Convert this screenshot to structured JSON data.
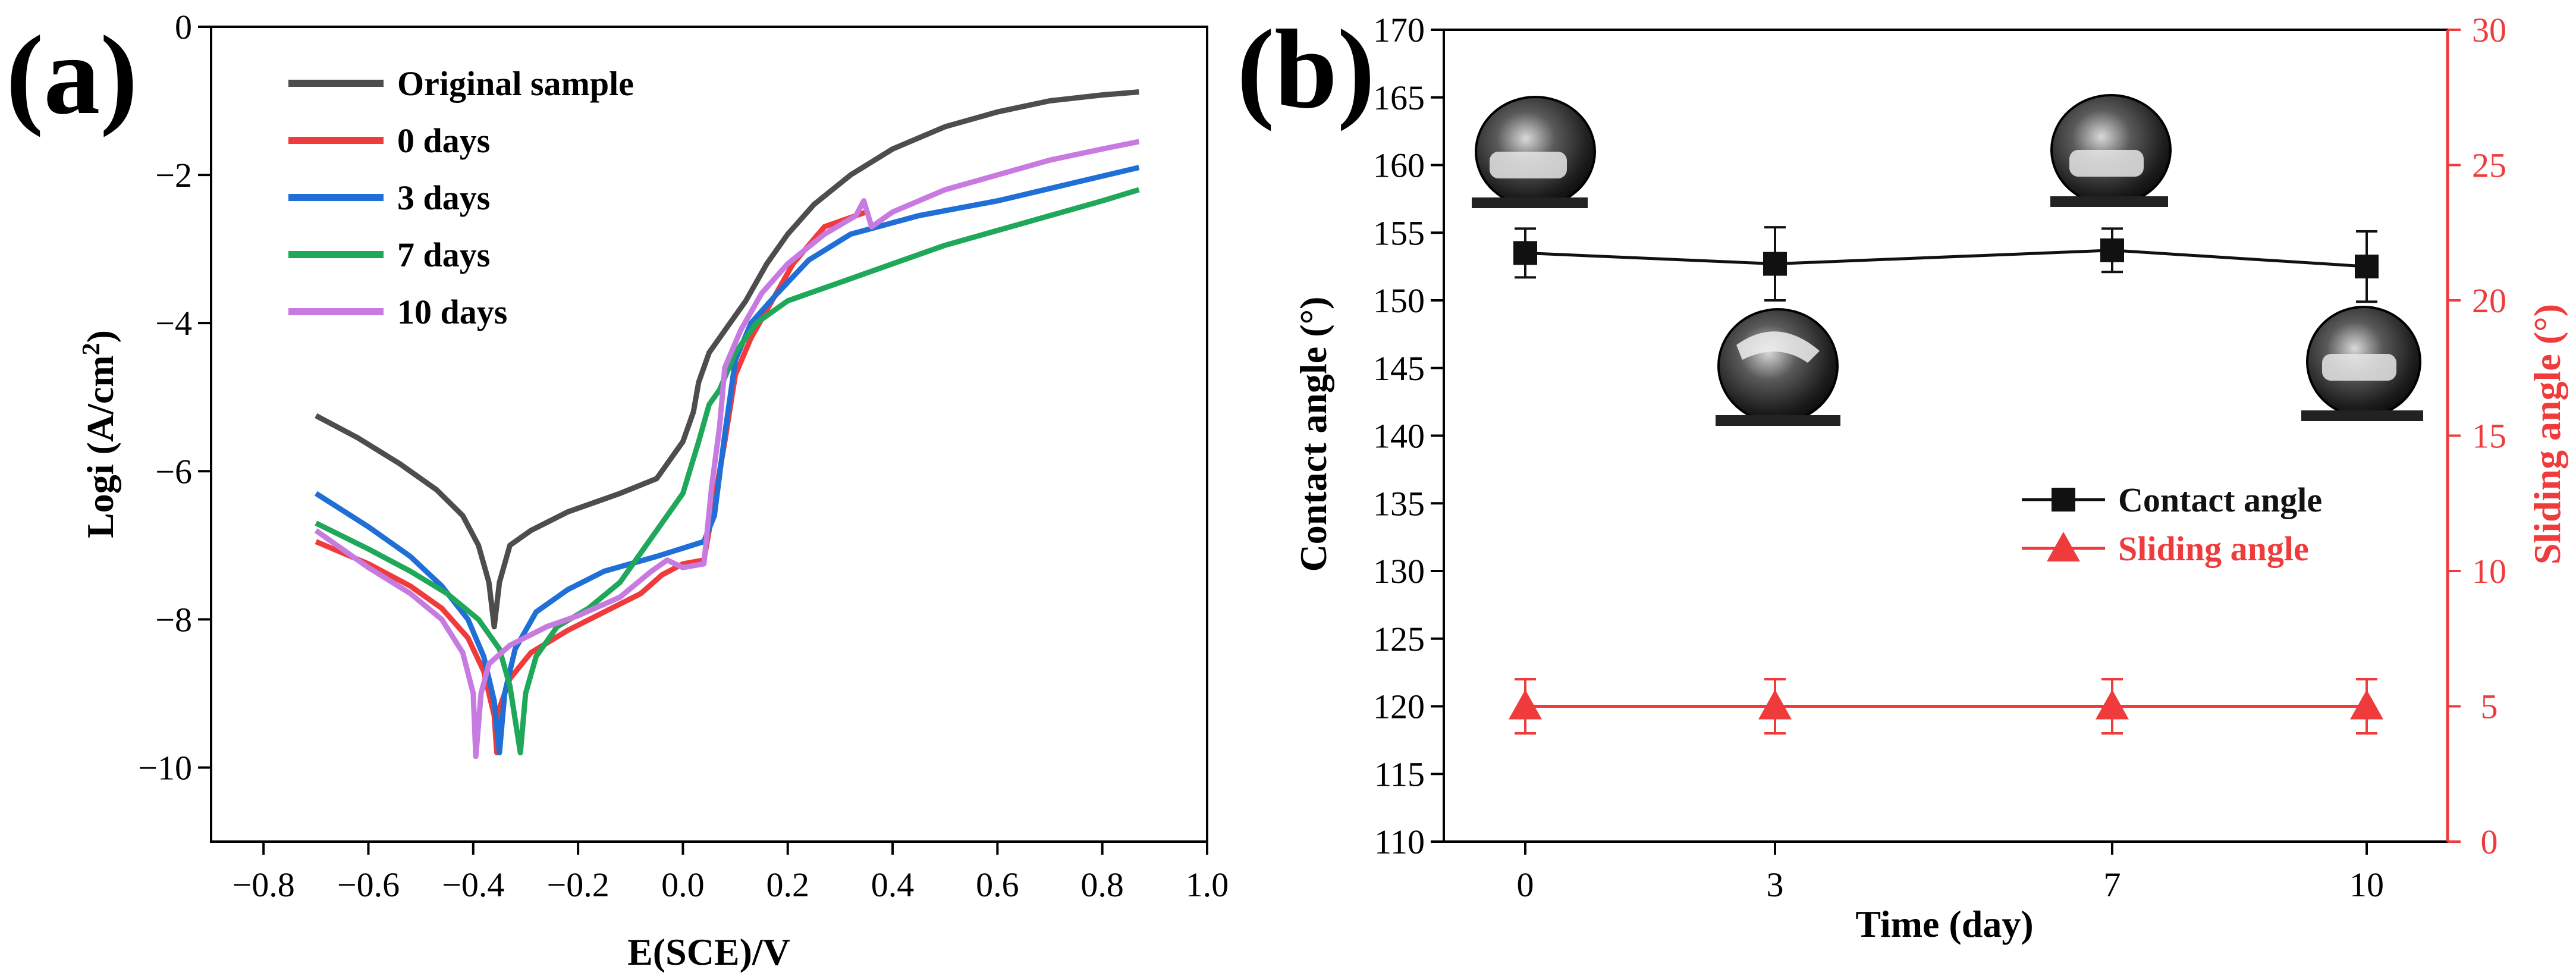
{
  "chart_data": [
    {
      "panel_label": "(a)",
      "type": "line",
      "title": "",
      "xlabel": "E(SCE)/V",
      "ylabel_main": "Logi (A/cm",
      "ylabel_sup": "2",
      "ylabel_close": ")",
      "xlim": [
        -0.9,
        1.0
      ],
      "ylim": [
        -11,
        0
      ],
      "xticks": [
        -0.8,
        -0.6,
        -0.4,
        -0.2,
        0.0,
        0.2,
        0.4,
        0.6,
        0.8,
        1.0
      ],
      "xtick_labels": [
        "−0.8",
        "−0.6",
        "−0.4",
        "−0.2",
        "0.0",
        "0.2",
        "0.4",
        "0.6",
        "0.8",
        "1.0"
      ],
      "yticks": [
        0,
        -2,
        -4,
        -6,
        -8,
        -10
      ],
      "ytick_labels": [
        "0",
        "−2",
        "−4",
        "−6",
        "−8",
        "−10"
      ],
      "legend_position": "top-left",
      "series": [
        {
          "name": "Original sample",
          "color": "#4d4d4d",
          "points": [
            [
              -0.7,
              -5.25
            ],
            [
              -0.62,
              -5.55
            ],
            [
              -0.54,
              -5.9
            ],
            [
              -0.47,
              -6.25
            ],
            [
              -0.42,
              -6.6
            ],
            [
              -0.39,
              -7.0
            ],
            [
              -0.37,
              -7.5
            ],
            [
              -0.36,
              -8.1
            ],
            [
              -0.35,
              -7.5
            ],
            [
              -0.33,
              -7.0
            ],
            [
              -0.29,
              -6.8
            ],
            [
              -0.22,
              -6.55
            ],
            [
              -0.12,
              -6.3
            ],
            [
              -0.05,
              -6.1
            ],
            [
              0.0,
              -5.6
            ],
            [
              0.02,
              -5.2
            ],
            [
              0.03,
              -4.8
            ],
            [
              0.05,
              -4.4
            ],
            [
              0.08,
              -4.1
            ],
            [
              0.12,
              -3.7
            ],
            [
              0.16,
              -3.2
            ],
            [
              0.2,
              -2.8
            ],
            [
              0.25,
              -2.4
            ],
            [
              0.32,
              -2.0
            ],
            [
              0.4,
              -1.65
            ],
            [
              0.5,
              -1.35
            ],
            [
              0.6,
              -1.15
            ],
            [
              0.7,
              -1.0
            ],
            [
              0.8,
              -0.92
            ],
            [
              0.87,
              -0.88
            ]
          ]
        },
        {
          "name": "0 days",
          "color": "#ef3b3b",
          "points": [
            [
              -0.7,
              -6.95
            ],
            [
              -0.6,
              -7.25
            ],
            [
              -0.52,
              -7.55
            ],
            [
              -0.46,
              -7.85
            ],
            [
              -0.41,
              -8.25
            ],
            [
              -0.38,
              -8.7
            ],
            [
              -0.36,
              -9.3
            ],
            [
              -0.355,
              -9.8
            ],
            [
              -0.35,
              -9.2
            ],
            [
              -0.33,
              -8.8
            ],
            [
              -0.29,
              -8.45
            ],
            [
              -0.22,
              -8.15
            ],
            [
              -0.15,
              -7.9
            ],
            [
              -0.08,
              -7.65
            ],
            [
              -0.04,
              -7.4
            ],
            [
              0.0,
              -7.25
            ],
            [
              0.04,
              -7.2
            ],
            [
              0.06,
              -6.4
            ],
            [
              0.08,
              -5.6
            ],
            [
              0.1,
              -4.7
            ],
            [
              0.13,
              -4.2
            ],
            [
              0.17,
              -3.7
            ],
            [
              0.21,
              -3.2
            ],
            [
              0.27,
              -2.7
            ],
            [
              0.35,
              -2.5
            ]
          ]
        },
        {
          "name": "3 days",
          "color": "#1f6fd6",
          "points": [
            [
              -0.7,
              -6.3
            ],
            [
              -0.6,
              -6.75
            ],
            [
              -0.52,
              -7.15
            ],
            [
              -0.46,
              -7.55
            ],
            [
              -0.41,
              -8.0
            ],
            [
              -0.38,
              -8.5
            ],
            [
              -0.36,
              -9.1
            ],
            [
              -0.35,
              -9.8
            ],
            [
              -0.34,
              -9.0
            ],
            [
              -0.32,
              -8.4
            ],
            [
              -0.28,
              -7.9
            ],
            [
              -0.22,
              -7.6
            ],
            [
              -0.15,
              -7.35
            ],
            [
              -0.05,
              -7.15
            ],
            [
              0.04,
              -6.95
            ],
            [
              0.06,
              -6.6
            ],
            [
              0.08,
              -5.5
            ],
            [
              0.1,
              -4.5
            ],
            [
              0.13,
              -4.0
            ],
            [
              0.18,
              -3.6
            ],
            [
              0.24,
              -3.15
            ],
            [
              0.32,
              -2.8
            ],
            [
              0.45,
              -2.55
            ],
            [
              0.6,
              -2.35
            ],
            [
              0.75,
              -2.1
            ],
            [
              0.87,
              -1.9
            ]
          ]
        },
        {
          "name": "7 days",
          "color": "#1fa85a",
          "points": [
            [
              -0.7,
              -6.7
            ],
            [
              -0.6,
              -7.05
            ],
            [
              -0.52,
              -7.35
            ],
            [
              -0.45,
              -7.65
            ],
            [
              -0.39,
              -8.0
            ],
            [
              -0.35,
              -8.4
            ],
            [
              -0.33,
              -8.9
            ],
            [
              -0.31,
              -9.8
            ],
            [
              -0.3,
              -9.0
            ],
            [
              -0.28,
              -8.5
            ],
            [
              -0.24,
              -8.1
            ],
            [
              -0.18,
              -7.85
            ],
            [
              -0.12,
              -7.5
            ],
            [
              -0.06,
              -6.9
            ],
            [
              0.0,
              -6.3
            ],
            [
              0.03,
              -5.6
            ],
            [
              0.05,
              -5.1
            ],
            [
              0.07,
              -4.9
            ],
            [
              0.1,
              -4.4
            ],
            [
              0.14,
              -4.0
            ],
            [
              0.2,
              -3.7
            ],
            [
              0.3,
              -3.45
            ],
            [
              0.4,
              -3.2
            ],
            [
              0.5,
              -2.95
            ],
            [
              0.6,
              -2.75
            ],
            [
              0.7,
              -2.55
            ],
            [
              0.8,
              -2.35
            ],
            [
              0.87,
              -2.2
            ]
          ]
        },
        {
          "name": "10 days",
          "color": "#c77ae0",
          "points": [
            [
              -0.7,
              -6.8
            ],
            [
              -0.6,
              -7.3
            ],
            [
              -0.52,
              -7.65
            ],
            [
              -0.46,
              -8.0
            ],
            [
              -0.42,
              -8.45
            ],
            [
              -0.4,
              -9.0
            ],
            [
              -0.395,
              -9.85
            ],
            [
              -0.385,
              -9.0
            ],
            [
              -0.37,
              -8.6
            ],
            [
              -0.33,
              -8.35
            ],
            [
              -0.26,
              -8.1
            ],
            [
              -0.2,
              -7.95
            ],
            [
              -0.12,
              -7.7
            ],
            [
              -0.06,
              -7.35
            ],
            [
              -0.03,
              -7.2
            ],
            [
              0.0,
              -7.3
            ],
            [
              0.04,
              -7.25
            ],
            [
              0.055,
              -6.2
            ],
            [
              0.07,
              -5.4
            ],
            [
              0.08,
              -4.6
            ],
            [
              0.11,
              -4.1
            ],
            [
              0.15,
              -3.6
            ],
            [
              0.2,
              -3.2
            ],
            [
              0.27,
              -2.8
            ],
            [
              0.33,
              -2.55
            ],
            [
              0.345,
              -2.35
            ],
            [
              0.36,
              -2.7
            ],
            [
              0.4,
              -2.5
            ],
            [
              0.5,
              -2.2
            ],
            [
              0.6,
              -2.0
            ],
            [
              0.7,
              -1.8
            ],
            [
              0.8,
              -1.65
            ],
            [
              0.87,
              -1.55
            ]
          ]
        }
      ]
    },
    {
      "panel_label": "(b)",
      "type": "scatter",
      "title": "",
      "xlabel": "Time (day)",
      "ylabel_left": "Contact angle (°)",
      "ylabel_right": "Sliding angle (°)",
      "categories": [
        "0",
        "3",
        "7",
        "10"
      ],
      "ylim_left": [
        110,
        170
      ],
      "ylim_right": [
        0,
        30
      ],
      "yticks_left": [
        110,
        115,
        120,
        125,
        130,
        135,
        140,
        145,
        150,
        155,
        160,
        165,
        170
      ],
      "yticks_right": [
        0,
        5,
        10,
        15,
        20,
        25,
        30
      ],
      "legend_position": "right",
      "right_axis_color": "#ef3b3b",
      "series": [
        {
          "name": "Contact angle",
          "axis": "left",
          "marker": "square",
          "color": "#111111",
          "values": [
            153.5,
            152.7,
            153.7,
            152.5
          ],
          "errors": [
            1.8,
            2.7,
            1.6,
            2.6
          ]
        },
        {
          "name": "Sliding angle",
          "axis": "right",
          "marker": "triangle",
          "color": "#ef3b3b",
          "values": [
            5,
            5,
            5,
            5
          ],
          "errors": [
            1,
            1,
            1,
            1
          ]
        }
      ],
      "annotations": [
        "droplet-photo",
        "droplet-photo",
        "droplet-photo",
        "droplet-photo"
      ]
    }
  ]
}
